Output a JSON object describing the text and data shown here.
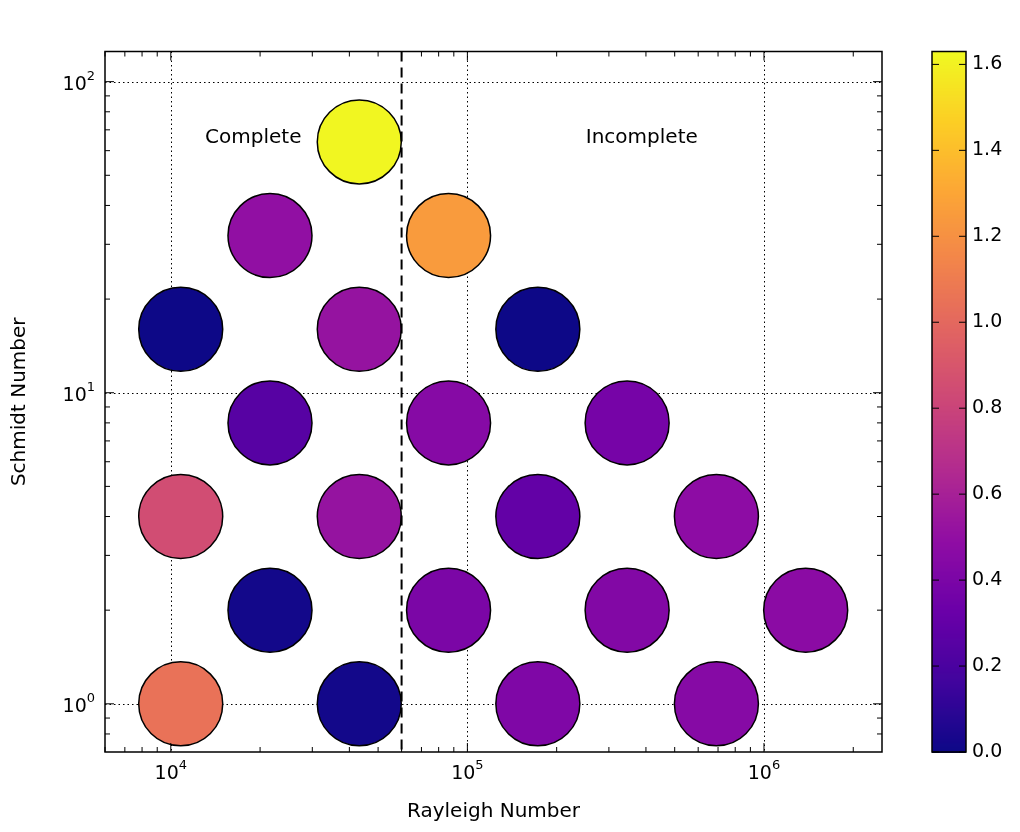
{
  "chart_data": {
    "type": "scatter",
    "xlabel": "Rayleigh Number",
    "ylabel": "Schmidt Number",
    "x": [
      43200,
      21600,
      86400,
      10800,
      43200,
      172800,
      21600,
      86400,
      345600,
      10800,
      43200,
      172800,
      691200,
      21600,
      86400,
      345600,
      1382400,
      10800,
      43200,
      172800,
      691200
    ],
    "values": [
      64,
      32,
      32,
      16,
      16,
      16,
      8,
      8,
      8,
      4,
      4,
      4,
      4,
      2,
      2,
      2,
      2,
      1,
      1,
      1,
      1
    ],
    "cvalues": [
      1.62,
      0.5,
      1.25,
      0.0,
      0.52,
      0.0,
      0.25,
      0.45,
      0.38,
      0.85,
      0.52,
      0.3,
      0.48,
      0.02,
      0.4,
      0.43,
      0.47,
      1.05,
      0.02,
      0.42,
      0.45
    ],
    "clim": [
      0,
      1.63
    ],
    "cticks": [
      {
        "value": 0,
        "label": "0.0"
      },
      {
        "value": 0.2,
        "label": "0.2"
      },
      {
        "value": 0.4,
        "label": "0.4"
      },
      {
        "value": 0.6,
        "label": "0.6"
      },
      {
        "value": 0.8,
        "label": "0.8"
      },
      {
        "value": 1.0,
        "label": "1.0"
      },
      {
        "value": 1.2,
        "label": "1.2"
      },
      {
        "value": 1.4,
        "label": "1.4"
      },
      {
        "value": 1.6,
        "label": "1.6"
      }
    ],
    "log": "xy",
    "xlim": [
      6000,
      2500000
    ],
    "ylim": [
      0.71,
      125
    ],
    "xticks": [
      {
        "value": 6000,
        "label": null
      },
      {
        "value": 7000,
        "label": null
      },
      {
        "value": 8000,
        "label": null
      },
      {
        "value": 9000,
        "label": null
      },
      {
        "value": 10000,
        "label": "10$^{4}$"
      },
      {
        "value": 20000,
        "label": null
      },
      {
        "value": 30000,
        "label": null
      },
      {
        "value": 40000,
        "label": null
      },
      {
        "value": 50000,
        "label": null
      },
      {
        "value": 60000,
        "label": null
      },
      {
        "value": 70000,
        "label": null
      },
      {
        "value": 80000,
        "label": null
      },
      {
        "value": 90000,
        "label": null
      },
      {
        "value": 100000,
        "label": "10$^{5}$"
      },
      {
        "value": 200000,
        "label": null
      },
      {
        "value": 300000,
        "label": null
      },
      {
        "value": 400000,
        "label": null
      },
      {
        "value": 500000,
        "label": null
      },
      {
        "value": 600000,
        "label": null
      },
      {
        "value": 700000,
        "label": null
      },
      {
        "value": 800000,
        "label": null
      },
      {
        "value": 900000,
        "label": null
      },
      {
        "value": 1000000,
        "label": "10$^{6}$"
      },
      {
        "value": 2000000,
        "label": null
      }
    ],
    "yticks": [
      {
        "value": 0.8,
        "label": null
      },
      {
        "value": 0.9,
        "label": null
      },
      {
        "value": 1,
        "label": "10$^{0}$"
      },
      {
        "value": 2,
        "label": null
      },
      {
        "value": 3,
        "label": null
      },
      {
        "value": 4,
        "label": null
      },
      {
        "value": 5,
        "label": null
      },
      {
        "value": 6,
        "label": null
      },
      {
        "value": 7,
        "label": null
      },
      {
        "value": 8,
        "label": null
      },
      {
        "value": 9,
        "label": null
      },
      {
        "value": 10,
        "label": "10$^{1}$"
      },
      {
        "value": 20,
        "label": null
      },
      {
        "value": 30,
        "label": null
      },
      {
        "value": 40,
        "label": null
      },
      {
        "value": 50,
        "label": null
      },
      {
        "value": 60,
        "label": null
      },
      {
        "value": 70,
        "label": null
      },
      {
        "value": 80,
        "label": null
      },
      {
        "value": 90,
        "label": null
      },
      {
        "value": 100,
        "label": "10$^{2}$"
      }
    ],
    "grid": true,
    "marker": "circle",
    "ref_lines": [
      {
        "axis": "x",
        "value": 60000,
        "color": "#000000",
        "line_style": "dashed"
      }
    ],
    "annotations": [
      "Complete",
      "Incomplete"
    ]
  }
}
